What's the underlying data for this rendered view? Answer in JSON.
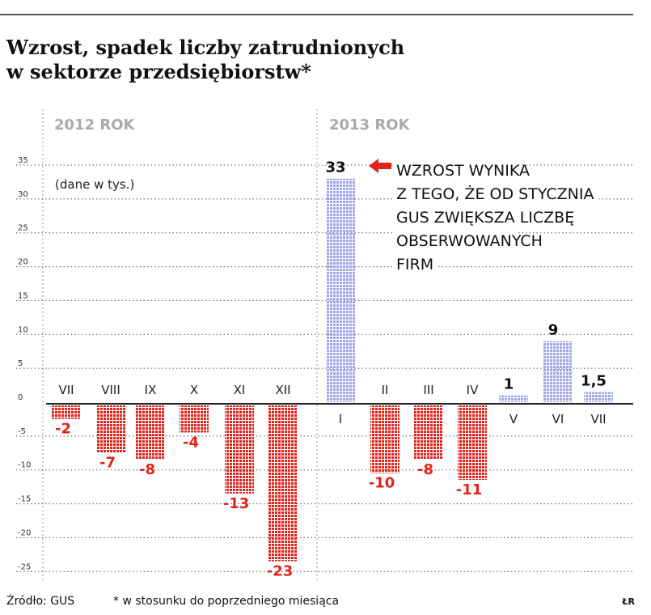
{
  "header": {
    "title_line1": "Wzrost, spadek liczby zatrudnionych",
    "title_line2": "w sektorze przedsiębiorstw*"
  },
  "footer": {
    "source": "Źródło: GUS",
    "note": "* w stosunku do poprzedniego miesiąca",
    "author": "ŁR"
  },
  "colors": {
    "positive": "#9fa6e6",
    "negative": "#e0231b",
    "arrow": "#e0231b",
    "year_label": "#aaaaaa"
  },
  "chart_data": {
    "type": "bar",
    "units_note": "(dane w tys.)",
    "year_labels": [
      "2012 ROK",
      "2013 ROK"
    ],
    "categories": [
      "VII",
      "VIII",
      "IX",
      "X",
      "XI",
      "XII",
      "I",
      "II",
      "III",
      "IV",
      "V",
      "VI",
      "VII"
    ],
    "values": [
      -2,
      -7,
      -8,
      -4,
      -13,
      -23,
      33,
      -10,
      -8,
      -11,
      1,
      9,
      1.5
    ],
    "value_labels": [
      "-2",
      "-7",
      "-8",
      "-4",
      "-13",
      "-23",
      "33",
      "-10",
      "-8",
      "-11",
      "1",
      "9",
      "1,5"
    ],
    "ylim": [
      -25,
      35
    ],
    "yticks": [
      "35",
      "30",
      "25",
      "20",
      "15",
      "10",
      "5",
      "0",
      "-5",
      "-10",
      "-15",
      "-20",
      "-25"
    ],
    "annotation": [
      "WZROST WYNIKA",
      "Z TEGO, ŻE OD STYCZNIA",
      "GUS ZWIĘKSZA LICZBĘ",
      "OBSERWOWANYCH",
      "FIRM"
    ],
    "grid": true
  }
}
